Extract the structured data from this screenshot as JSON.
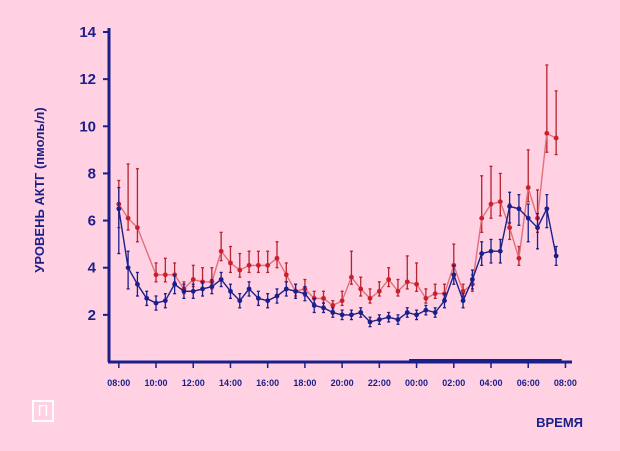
{
  "logo": {
    "text": "П"
  },
  "colors": {
    "background": "#ffd1e3",
    "axis": "#1b1f8a",
    "series_red": "#cc1f2c",
    "series_red_line": "#e0707a",
    "series_red_err": "#b4232e",
    "series_blue": "#1b1f8a",
    "logo": "#ffffff"
  },
  "chart_data": {
    "type": "line",
    "title": "",
    "ylabel": "УРОВЕНЬ АКТГ (пмоль/л)",
    "xlabel": "ВРЕМЯ",
    "ylim": [
      0,
      14
    ],
    "xlim_hours": [
      7.5,
      32.0
    ],
    "y_ticks": [
      2,
      4,
      6,
      8,
      10,
      12,
      14
    ],
    "x_tick_labels": [
      "08:00",
      "10:00",
      "12:00",
      "14:00",
      "16:00",
      "18:00",
      "20:00",
      "22:00",
      "00:00",
      "02:00",
      "04:00",
      "06:00",
      "08:00"
    ],
    "x_tick_hours": [
      8,
      10,
      12,
      14,
      16,
      18,
      20,
      22,
      24,
      26,
      28,
      30,
      32
    ],
    "highlight_span_hours": [
      23.6,
      31.8
    ],
    "legend": "none",
    "grid": false,
    "series": [
      {
        "color": "#cc1f2c",
        "x_hours": [
          8.0,
          8.5,
          9.0,
          10.0,
          10.5,
          11.0,
          11.5,
          12.0,
          12.5,
          13.0,
          13.5,
          14.0,
          14.5,
          15.0,
          15.5,
          16.0,
          16.5,
          17.0,
          17.5,
          18.0,
          18.5,
          19.0,
          19.5,
          20.0,
          20.5,
          21.0,
          21.5,
          22.0,
          22.5,
          23.0,
          23.5,
          24.0,
          24.5,
          25.0,
          25.5,
          26.0,
          26.5,
          27.0,
          27.5,
          28.0,
          28.5,
          29.0,
          29.5,
          30.0,
          30.5,
          31.0,
          31.5
        ],
        "values": [
          6.7,
          6.1,
          5.7,
          3.7,
          3.7,
          3.7,
          3.1,
          3.5,
          3.4,
          3.4,
          4.7,
          4.2,
          3.9,
          4.1,
          4.1,
          4.1,
          4.4,
          3.7,
          3.0,
          3.1,
          2.7,
          2.7,
          2.4,
          2.6,
          3.6,
          3.1,
          2.7,
          3.0,
          3.5,
          3.0,
          3.4,
          3.3,
          2.7,
          2.9,
          2.9,
          4.1,
          3.0,
          3.3,
          6.1,
          6.7,
          6.8,
          5.7,
          4.4,
          7.4,
          6.1,
          9.7,
          9.5
        ],
        "err_hi": [
          1.0,
          2.3,
          2.5,
          0.5,
          0.7,
          0.5,
          0.3,
          0.6,
          0.6,
          0.6,
          0.8,
          0.7,
          0.7,
          0.6,
          0.6,
          0.6,
          0.7,
          0.5,
          0.3,
          0.4,
          0.3,
          0.3,
          0.2,
          0.4,
          1.1,
          0.5,
          0.4,
          0.4,
          0.5,
          0.5,
          1.1,
          0.9,
          0.4,
          0.4,
          0.4,
          0.9,
          0.3,
          0.4,
          1.8,
          1.6,
          1.2,
          1.0,
          0.5,
          1.6,
          1.2,
          2.9,
          2.0
        ],
        "err_lo": [
          1.0,
          0.5,
          0.6,
          0.3,
          0.3,
          0.3,
          0.2,
          0.3,
          0.3,
          0.3,
          0.4,
          0.4,
          0.3,
          0.3,
          0.3,
          0.3,
          0.4,
          0.3,
          0.2,
          0.3,
          0.2,
          0.2,
          0.2,
          0.2,
          0.3,
          0.3,
          0.2,
          0.2,
          0.3,
          0.2,
          0.3,
          0.3,
          0.2,
          0.2,
          0.2,
          0.4,
          0.2,
          0.3,
          0.6,
          0.6,
          0.6,
          0.5,
          0.3,
          0.6,
          0.6,
          0.8,
          0.7
        ]
      },
      {
        "color": "#1b1f8a",
        "x_hours": [
          8.0,
          8.5,
          9.0,
          9.5,
          10.0,
          10.5,
          11.0,
          11.5,
          12.0,
          12.5,
          13.0,
          13.5,
          14.0,
          14.5,
          15.0,
          15.5,
          16.0,
          16.5,
          17.0,
          17.5,
          18.0,
          18.5,
          19.0,
          19.5,
          20.0,
          20.5,
          21.0,
          21.5,
          22.0,
          22.5,
          23.0,
          23.5,
          24.0,
          24.5,
          25.0,
          25.5,
          26.0,
          26.5,
          27.0,
          27.5,
          28.0,
          28.5,
          29.0,
          29.5,
          30.0,
          30.5,
          31.0,
          31.5
        ],
        "values": [
          6.5,
          4.0,
          3.3,
          2.7,
          2.5,
          2.6,
          3.3,
          3.0,
          3.0,
          3.1,
          3.2,
          3.5,
          3.0,
          2.6,
          3.1,
          2.7,
          2.6,
          2.8,
          3.1,
          3.0,
          2.9,
          2.4,
          2.3,
          2.1,
          2.0,
          2.0,
          2.1,
          1.7,
          1.8,
          1.9,
          1.8,
          2.1,
          2.0,
          2.2,
          2.1,
          2.6,
          3.7,
          2.6,
          3.5,
          4.6,
          4.7,
          4.7,
          6.6,
          6.5,
          6.1,
          5.7,
          6.5,
          4.5
        ],
        "err_hi": [
          0.9,
          0.7,
          0.5,
          0.3,
          0.3,
          0.3,
          0.4,
          0.3,
          0.3,
          0.3,
          0.3,
          0.3,
          0.3,
          0.3,
          0.3,
          0.3,
          0.3,
          0.3,
          0.3,
          0.3,
          0.3,
          0.3,
          0.2,
          0.2,
          0.2,
          0.2,
          0.2,
          0.2,
          0.2,
          0.2,
          0.2,
          0.2,
          0.2,
          0.2,
          0.2,
          0.3,
          0.4,
          0.3,
          0.4,
          0.5,
          0.5,
          0.5,
          0.6,
          0.6,
          0.6,
          0.6,
          0.6,
          0.4
        ],
        "err_lo": [
          1.9,
          0.9,
          0.5,
          0.3,
          0.3,
          0.3,
          0.4,
          0.3,
          0.3,
          0.3,
          0.3,
          0.3,
          0.3,
          0.3,
          0.3,
          0.3,
          0.3,
          0.3,
          0.3,
          0.3,
          0.3,
          0.3,
          0.2,
          0.2,
          0.2,
          0.2,
          0.2,
          0.2,
          0.2,
          0.2,
          0.2,
          0.2,
          0.2,
          0.2,
          0.2,
          0.3,
          0.4,
          0.3,
          0.4,
          0.5,
          0.5,
          0.5,
          0.7,
          0.7,
          1.0,
          0.9,
          0.8,
          0.4
        ]
      }
    ]
  }
}
